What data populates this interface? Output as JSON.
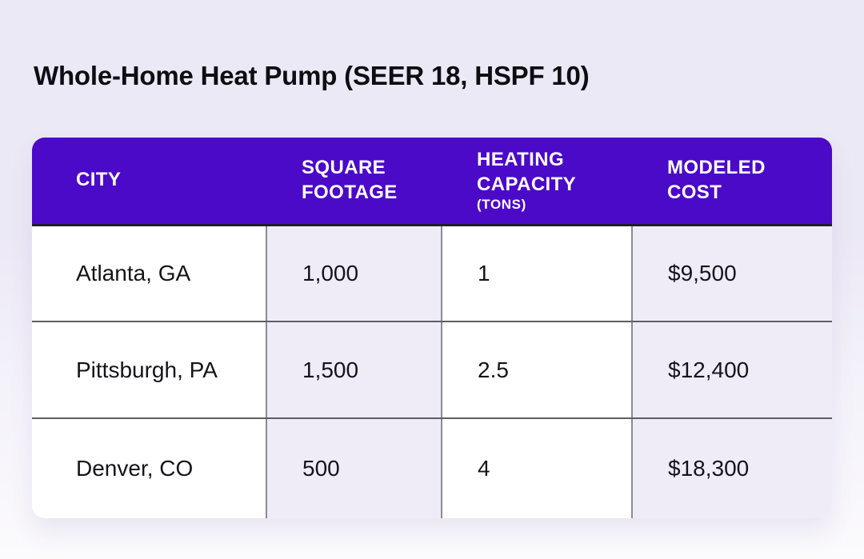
{
  "page_title": "Whole-Home Heat Pump (SEER 18, HSPF 10)",
  "colors": {
    "header_bg": "#4B0AC8",
    "header_text": "#FFFFFF",
    "cell_bg": "#FFFFFF",
    "cell_alt_bg": "#EFECF8",
    "page_bg_top": "#ECE9F6",
    "page_bg_bottom": "#FBFAFD",
    "header_bottom_border": "#201D28",
    "row_border": "#5F5D64",
    "column_border": "#8D8B92",
    "body_text": "#15131A"
  },
  "table": {
    "columns": [
      {
        "label": "CITY",
        "sublabel": ""
      },
      {
        "label": "SQUARE FOOTAGE",
        "sublabel": ""
      },
      {
        "label": "HEATING CAPACITY",
        "sublabel": "(TONS)"
      },
      {
        "label": "MODELED COST",
        "sublabel": ""
      }
    ],
    "rows": [
      {
        "city": "Atlanta, GA",
        "square_footage": "1,000",
        "heating_capacity_tons": "1",
        "modeled_cost": "$9,500"
      },
      {
        "city": "Pittsburgh, PA",
        "square_footage": "1,500",
        "heating_capacity_tons": "2.5",
        "modeled_cost": "$12,400"
      },
      {
        "city": "Denver, CO",
        "square_footage": "500",
        "heating_capacity_tons": "4",
        "modeled_cost": "$18,300"
      }
    ]
  },
  "chart_data": {
    "type": "table",
    "title": "Whole-Home Heat Pump (SEER 18, HSPF 10)",
    "columns": [
      "CITY",
      "SQUARE FOOTAGE",
      "HEATING CAPACITY (TONS)",
      "MODELED COST"
    ],
    "rows": [
      [
        "Atlanta, GA",
        "1,000",
        "1",
        "$9,500"
      ],
      [
        "Pittsburgh, PA",
        "1,500",
        "2.5",
        "$12,400"
      ],
      [
        "Denver, CO",
        "500",
        "4",
        "$18,300"
      ]
    ]
  }
}
